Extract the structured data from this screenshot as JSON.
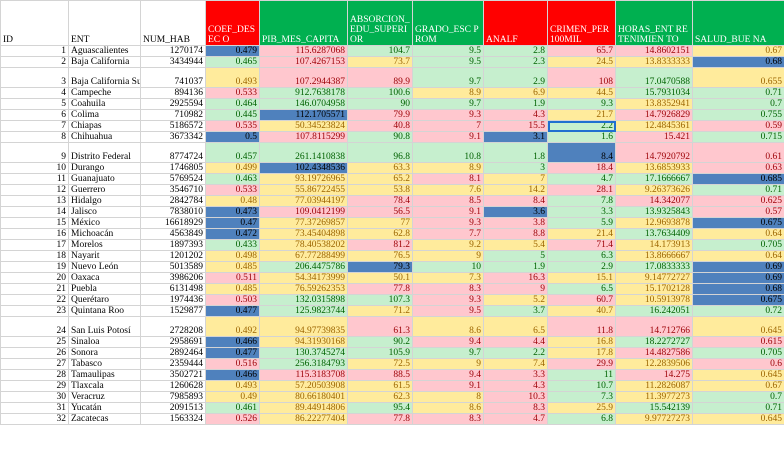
{
  "columns": [
    "ID",
    "ENT",
    "NUM_HAB",
    "COEF_DESEC O",
    "PIB_MES_CAPITA",
    "ABSORCION_ EDU_SUPERI OR",
    "GRADO_ESC PROM",
    "ANALF",
    "CRIMEN_PER 100MIL",
    "HORAS_ENT RETENIMIEN TO",
    "SALUD_BUE NA"
  ],
  "header_styles": [
    "",
    "",
    "",
    "hr",
    "hg",
    "hg",
    "hg",
    "hr",
    "hr",
    "hg",
    "hg"
  ],
  "rows": [
    {
      "id": "1",
      "ent": "Aguascalientes",
      "num_hab": "1270174",
      "coef": "0.479",
      "pib": "115.6287068",
      "abs": "104.7",
      "grado": "9.5",
      "analf": "2.8",
      "crimen": "65.7",
      "horas": "14.8602151",
      "salud": "0.67",
      "st": [
        "b",
        "p",
        "g",
        "g",
        "g",
        "p",
        "p",
        "y"
      ]
    },
    {
      "id": "2",
      "ent": "Baja California",
      "num_hab": "3434944",
      "coef": "0.465",
      "pib": "107.4267153",
      "abs": "73.7",
      "grado": "9.5",
      "analf": "2.3",
      "crimen": "24.5",
      "horas": "13.8333333",
      "salud": "0.68",
      "st": [
        "g",
        "p",
        "y",
        "g",
        "g",
        "y",
        "y",
        "b"
      ]
    },
    {
      "id": "3",
      "ent": "Baja California Sur",
      "num_hab": "741037",
      "coef": "0.493",
      "pib": "107.2944387",
      "abs": "89.9",
      "grado": "9.7",
      "analf": "2.9",
      "crimen": "108",
      "horas": "17.0470588",
      "salud": "0.655",
      "st": [
        "y",
        "p",
        "p",
        "g",
        "g",
        "p",
        "g",
        "y"
      ],
      "tall": true
    },
    {
      "id": "4",
      "ent": "Campeche",
      "num_hab": "894136",
      "coef": "0.533",
      "pib": "912.7638178",
      "abs": "100.6",
      "grado": "8.9",
      "analf": "6.9",
      "crimen": "44.5",
      "horas": "15.7931034",
      "salud": "0.71",
      "st": [
        "p",
        "g",
        "g",
        "y",
        "y",
        "y",
        "g",
        "g"
      ]
    },
    {
      "id": "5",
      "ent": "Coahuila",
      "num_hab": "2925594",
      "coef": "0.464",
      "pib": "146.0704958",
      "abs": "90",
      "grado": "9.7",
      "analf": "1.9",
      "crimen": "9.3",
      "horas": "13.8352941",
      "salud": "0.7",
      "st": [
        "g",
        "g",
        "g",
        "g",
        "g",
        "g",
        "y",
        "g"
      ]
    },
    {
      "id": "6",
      "ent": "Colima",
      "num_hab": "710982",
      "coef": "0.445",
      "pib": "112.1705571",
      "abs": "79.9",
      "grado": "9.3",
      "analf": "4.3",
      "crimen": "21.7",
      "horas": "14.7926829",
      "salud": "0.755",
      "st": [
        "g",
        "b",
        "p",
        "p",
        "p",
        "y",
        "p",
        "g"
      ]
    },
    {
      "id": "7",
      "ent": "Chiapas",
      "num_hab": "5186572",
      "coef": "0.535",
      "pib": "50.34523824",
      "abs": "40.8",
      "grado": "7",
      "analf": "15.5",
      "crimen": "2.2",
      "horas": "12.4845361",
      "salud": "0.59",
      "st": [
        "p",
        "y",
        "p",
        "p",
        "p",
        "g",
        "y",
        "p"
      ],
      "sel": "crimen"
    },
    {
      "id": "8",
      "ent": "Chihuahua",
      "num_hab": "3673342",
      "coef": "0.5",
      "pib": "107.8115299",
      "abs": "90.8",
      "grado": "9.1",
      "analf": "3.1",
      "crimen": "1.6",
      "horas": "15.421",
      "salud": "0.715",
      "st": [
        "b",
        "p",
        "g",
        "p",
        "b",
        "g",
        "p",
        "g"
      ]
    },
    {
      "id": "9",
      "ent": "Distrito Federal",
      "num_hab": "8774724",
      "coef": "0.457",
      "pib": "261.1410838",
      "abs": "96.8",
      "grado": "10.8",
      "analf": "1.8",
      "crimen": "8.4",
      "horas": "14.7920792",
      "salud": "0.61",
      "st": [
        "g",
        "g",
        "g",
        "g",
        "g",
        "b",
        "p",
        "p"
      ],
      "tall": true
    },
    {
      "id": "10",
      "ent": "Durango",
      "num_hab": "1746805",
      "coef": "0.499",
      "pib": "102.4348536",
      "abs": "63.3",
      "grado": "8.9",
      "analf": "3",
      "crimen": "18.4",
      "horas": "13.6853933",
      "salud": "0.63",
      "st": [
        "y",
        "b",
        "y",
        "y",
        "g",
        "p",
        "y",
        "p"
      ]
    },
    {
      "id": "11",
      "ent": "Guanajuato",
      "num_hab": "5769524",
      "coef": "0.463",
      "pib": "93.19726965",
      "abs": "65.2",
      "grado": "8.1",
      "analf": "7",
      "crimen": "4.7",
      "horas": "17.1666667",
      "salud": "0.685",
      "st": [
        "g",
        "y",
        "y",
        "p",
        "y",
        "g",
        "g",
        "b"
      ]
    },
    {
      "id": "12",
      "ent": "Guerrero",
      "num_hab": "3546710",
      "coef": "0.533",
      "pib": "55.86722455",
      "abs": "53.8",
      "grado": "7.6",
      "analf": "14.2",
      "crimen": "28.1",
      "horas": "9.26373626",
      "salud": "0.71",
      "st": [
        "p",
        "y",
        "y",
        "y",
        "y",
        "p",
        "y",
        "g"
      ]
    },
    {
      "id": "13",
      "ent": "Hidalgo",
      "num_hab": "2842784",
      "coef": "0.48",
      "pib": "77.03944197",
      "abs": "78.4",
      "grado": "8.5",
      "analf": "8.4",
      "crimen": "7.8",
      "horas": "14.342077",
      "salud": "0.625",
      "st": [
        "y",
        "y",
        "p",
        "p",
        "p",
        "g",
        "p",
        "p"
      ]
    },
    {
      "id": "14",
      "ent": "Jalisco",
      "num_hab": "7838010",
      "coef": "0.473",
      "pib": "109.0412199",
      "abs": "56.5",
      "grado": "9.1",
      "analf": "3.6",
      "crimen": "3.3",
      "horas": "13.9325843",
      "salud": "0.57",
      "st": [
        "b",
        "p",
        "p",
        "p",
        "b",
        "g",
        "g",
        "p"
      ]
    },
    {
      "id": "15",
      "ent": "México",
      "num_hab": "16618929",
      "coef": "0.47",
      "pib": "77.37269857",
      "abs": "77",
      "grado": "9.3",
      "analf": "3.8",
      "crimen": "5.9",
      "horas": "12.9693878",
      "salud": "0.675",
      "st": [
        "b",
        "y",
        "y",
        "p",
        "p",
        "g",
        "y",
        "b"
      ]
    },
    {
      "id": "16",
      "ent": "Michoacán",
      "num_hab": "4563849",
      "coef": "0.472",
      "pib": "73.45404898",
      "abs": "62.8",
      "grado": "7.7",
      "analf": "8.8",
      "crimen": "21.4",
      "horas": "13.7634409",
      "salud": "0.64",
      "st": [
        "b",
        "y",
        "y",
        "p",
        "p",
        "y",
        "g",
        "y"
      ]
    },
    {
      "id": "17",
      "ent": "Morelos",
      "num_hab": "1897393",
      "coef": "0.433",
      "pib": "78.40538202",
      "abs": "81.2",
      "grado": "9.2",
      "analf": "5.4",
      "crimen": "71.4",
      "horas": "14.173913",
      "salud": "0.705",
      "st": [
        "g",
        "y",
        "p",
        "y",
        "y",
        "p",
        "y",
        "g"
      ]
    },
    {
      "id": "18",
      "ent": "Nayarit",
      "num_hab": "1201202",
      "coef": "0.498",
      "pib": "67.77288499",
      "abs": "76.5",
      "grado": "9",
      "analf": "5",
      "crimen": "6.3",
      "horas": "13.8666667",
      "salud": "0.64",
      "st": [
        "y",
        "y",
        "y",
        "y",
        "g",
        "g",
        "y",
        "y"
      ]
    },
    {
      "id": "19",
      "ent": "Nuevo León",
      "num_hab": "5013589",
      "coef": "0.485",
      "pib": "206.4475786",
      "abs": "79.3",
      "grado": "10",
      "analf": "1.9",
      "crimen": "2.9",
      "horas": "17.0833333",
      "salud": "0.69",
      "st": [
        "y",
        "g",
        "b",
        "g",
        "g",
        "g",
        "g",
        "b"
      ]
    },
    {
      "id": "20",
      "ent": "Oaxaca",
      "num_hab": "3986206",
      "coef": "0.511",
      "pib": "54.34173999",
      "abs": "50.1",
      "grado": "7.3",
      "analf": "16.3",
      "crimen": "15.1",
      "horas": "9.14772727",
      "salud": "0.69",
      "st": [
        "p",
        "y",
        "y",
        "y",
        "p",
        "y",
        "y",
        "b"
      ]
    },
    {
      "id": "21",
      "ent": "Puebla",
      "num_hab": "6131498",
      "coef": "0.485",
      "pib": "76.59262353",
      "abs": "77.8",
      "grado": "8.3",
      "analf": "9",
      "crimen": "6.5",
      "horas": "15.1702128",
      "salud": "0.68",
      "st": [
        "y",
        "y",
        "p",
        "p",
        "p",
        "g",
        "y",
        "b"
      ]
    },
    {
      "id": "22",
      "ent": "Querétaro",
      "num_hab": "1974436",
      "coef": "0.503",
      "pib": "132.0315898",
      "abs": "107.3",
      "grado": "9.3",
      "analf": "5.2",
      "crimen": "60.7",
      "horas": "10.5913978",
      "salud": "0.675",
      "st": [
        "p",
        "g",
        "g",
        "p",
        "y",
        "p",
        "y",
        "b"
      ]
    },
    {
      "id": "23",
      "ent": "Quintana Roo",
      "num_hab": "1529877",
      "coef": "0.477",
      "pib": "125.9823744",
      "abs": "71.2",
      "grado": "9.5",
      "analf": "3.7",
      "crimen": "40.7",
      "horas": "16.242051",
      "salud": "0.72",
      "st": [
        "b",
        "g",
        "y",
        "p",
        "g",
        "y",
        "g",
        "g"
      ]
    },
    {
      "id": "24",
      "ent": "San Luis Potosí",
      "num_hab": "2728208",
      "coef": "0.492",
      "pib": "94.97739835",
      "abs": "61.3",
      "grado": "8.6",
      "analf": "6.5",
      "crimen": "11.8",
      "horas": "14.712766",
      "salud": "0.645",
      "st": [
        "y",
        "y",
        "p",
        "y",
        "y",
        "p",
        "p",
        "y"
      ],
      "tall": true
    },
    {
      "id": "25",
      "ent": "Sinaloa",
      "num_hab": "2958691",
      "coef": "0.466",
      "pib": "94.31930168",
      "abs": "90.2",
      "grado": "9.4",
      "analf": "4.4",
      "crimen": "16.8",
      "horas": "18.2272727",
      "salud": "0.615",
      "st": [
        "b",
        "y",
        "g",
        "p",
        "p",
        "y",
        "g",
        "p"
      ]
    },
    {
      "id": "26",
      "ent": "Sonora",
      "num_hab": "2892464",
      "coef": "0.477",
      "pib": "130.3745274",
      "abs": "105.9",
      "grado": "9.7",
      "analf": "2.2",
      "crimen": "17.8",
      "horas": "14.4827586",
      "salud": "0.705",
      "st": [
        "b",
        "g",
        "g",
        "g",
        "g",
        "y",
        "p",
        "g"
      ]
    },
    {
      "id": "27",
      "ent": "Tabasco",
      "num_hab": "2359444",
      "coef": "0.516",
      "pib": "256.3184793",
      "abs": "72.5",
      "grado": "9",
      "analf": "7.4",
      "crimen": "29.9",
      "horas": "12.2839506",
      "salud": "0.6",
      "st": [
        "p",
        "g",
        "y",
        "y",
        "y",
        "p",
        "y",
        "p"
      ]
    },
    {
      "id": "28",
      "ent": "Tamaulipas",
      "num_hab": "3502721",
      "coef": "0.466",
      "pib": "115.3183708",
      "abs": "88.5",
      "grado": "9.4",
      "analf": "3.3",
      "crimen": "11",
      "horas": "14.275",
      "salud": "0.645",
      "st": [
        "b",
        "p",
        "p",
        "p",
        "p",
        "g",
        "p",
        "y"
      ]
    },
    {
      "id": "29",
      "ent": "Tlaxcala",
      "num_hab": "1260628",
      "coef": "0.493",
      "pib": "57.20503908",
      "abs": "61.5",
      "grado": "9.1",
      "analf": "4.3",
      "crimen": "10.7",
      "horas": "11.2826087",
      "salud": "0.67",
      "st": [
        "y",
        "y",
        "y",
        "p",
        "p",
        "g",
        "y",
        "y"
      ]
    },
    {
      "id": "30",
      "ent": "Veracruz",
      "num_hab": "7985893",
      "coef": "0.49",
      "pib": "80.66180401",
      "abs": "62.3",
      "grado": "8",
      "analf": "10.3",
      "crimen": "7.3",
      "horas": "11.3977273",
      "salud": "0.7",
      "st": [
        "y",
        "y",
        "y",
        "y",
        "p",
        "g",
        "y",
        "g"
      ]
    },
    {
      "id": "31",
      "ent": "Yucatán",
      "num_hab": "2091513",
      "coef": "0.461",
      "pib": "89.44914806",
      "abs": "95.4",
      "grado": "8.6",
      "analf": "8.3",
      "crimen": "25.9",
      "horas": "15.542139",
      "salud": "0.71",
      "st": [
        "g",
        "y",
        "g",
        "y",
        "p",
        "y",
        "g",
        "g"
      ]
    },
    {
      "id": "32",
      "ent": "Zacatecas",
      "num_hab": "1563324",
      "coef": "0.526",
      "pib": "86.22277404",
      "abs": "77.8",
      "grado": "8.3",
      "analf": "4.7",
      "crimen": "6.8",
      "horas": "9.97727273",
      "salud": "0.645",
      "st": [
        "p",
        "y",
        "p",
        "p",
        "p",
        "g",
        "y",
        "y"
      ]
    }
  ]
}
